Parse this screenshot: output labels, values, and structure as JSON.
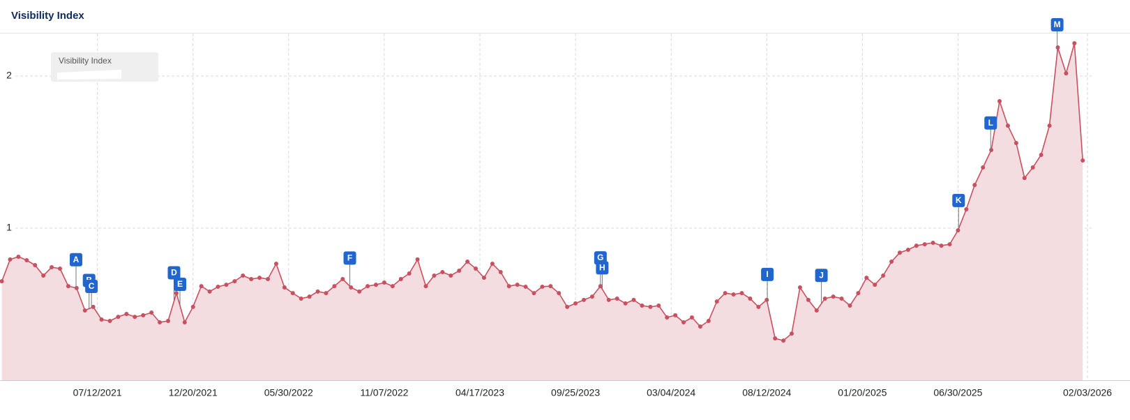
{
  "chart_data": {
    "type": "area",
    "title": "Visibility Index",
    "series": [
      {
        "name": "Visibility Index",
        "color": "#c9505f",
        "fill": "#f3dde0",
        "values": [
          0.651,
          0.794,
          0.812,
          0.789,
          0.757,
          0.688,
          0.743,
          0.734,
          0.619,
          0.606,
          0.459,
          0.482,
          0.399,
          0.39,
          0.417,
          0.436,
          0.417,
          0.427,
          0.445,
          0.381,
          0.39,
          0.573,
          0.381,
          0.482,
          0.619,
          0.583,
          0.615,
          0.628,
          0.651,
          0.688,
          0.665,
          0.674,
          0.665,
          0.766,
          0.61,
          0.573,
          0.537,
          0.55,
          0.583,
          0.573,
          0.619,
          0.665,
          0.61,
          0.583,
          0.619,
          0.628,
          0.642,
          0.619,
          0.665,
          0.702,
          0.794,
          0.619,
          0.688,
          0.711,
          0.688,
          0.72,
          0.78,
          0.734,
          0.674,
          0.766,
          0.711,
          0.619,
          0.628,
          0.615,
          0.573,
          0.615,
          0.619,
          0.573,
          0.482,
          0.505,
          0.528,
          0.55,
          0.619,
          0.528,
          0.537,
          0.505,
          0.528,
          0.491,
          0.482,
          0.491,
          0.413,
          0.427,
          0.381,
          0.413,
          0.353,
          0.39,
          0.518,
          0.573,
          0.564,
          0.573,
          0.537,
          0.482,
          0.528,
          0.275,
          0.261,
          0.307,
          0.61,
          0.528,
          0.459,
          0.537,
          0.55,
          0.537,
          0.491,
          0.573,
          0.674,
          0.628,
          0.688,
          0.78,
          0.839,
          0.858,
          0.885,
          0.894,
          0.904,
          0.885,
          0.894,
          0.986,
          1.124,
          1.284,
          1.399,
          1.514,
          1.835,
          1.674,
          1.56,
          1.33,
          1.399,
          1.482,
          1.674,
          2.188,
          2.018,
          2.216,
          1.445
        ]
      }
    ],
    "x": [
      "02/01/2021",
      "02/15/2021",
      "03/01/2021",
      "03/15/2021",
      "03/29/2021",
      "04/12/2021",
      "04/26/2021",
      "05/10/2021",
      "05/24/2021",
      "06/07/2021",
      "06/21/2021",
      "07/05/2021",
      "07/19/2021",
      "08/02/2021",
      "08/16/2021",
      "08/30/2021",
      "09/13/2021",
      "09/27/2021",
      "10/11/2021",
      "10/25/2021",
      "11/08/2021",
      "11/22/2021",
      "12/06/2021",
      "12/20/2021",
      "01/03/2022",
      "01/17/2022",
      "01/31/2022",
      "02/14/2022",
      "02/28/2022",
      "03/14/2022",
      "03/28/2022",
      "04/11/2022",
      "04/25/2022",
      "05/09/2022",
      "05/23/2022",
      "06/06/2022",
      "06/20/2022",
      "07/04/2022",
      "07/18/2022",
      "08/01/2022",
      "08/15/2022",
      "08/29/2022",
      "09/12/2022",
      "09/26/2022",
      "10/10/2022",
      "10/24/2022",
      "11/07/2022",
      "11/21/2022",
      "12/05/2022",
      "12/19/2022",
      "01/02/2023",
      "01/16/2023",
      "01/30/2023",
      "02/13/2023",
      "02/27/2023",
      "03/13/2023",
      "03/27/2023",
      "04/10/2023",
      "04/24/2023",
      "05/08/2023",
      "05/22/2023",
      "06/05/2023",
      "06/19/2023",
      "07/03/2023",
      "07/17/2023",
      "07/31/2023",
      "08/14/2023",
      "08/28/2023",
      "09/11/2023",
      "09/25/2023",
      "10/09/2023",
      "10/23/2023",
      "11/06/2023",
      "11/20/2023",
      "12/04/2023",
      "12/18/2023",
      "01/01/2024",
      "01/15/2024",
      "01/29/2024",
      "02/12/2024",
      "02/26/2024",
      "03/11/2024",
      "03/25/2024",
      "04/08/2024",
      "04/22/2024",
      "05/06/2024",
      "05/20/2024",
      "06/03/2024",
      "06/17/2024",
      "07/01/2024",
      "07/15/2024",
      "07/29/2024",
      "08/12/2024",
      "08/26/2024",
      "09/09/2024",
      "09/23/2024",
      "10/07/2024",
      "10/21/2024",
      "11/04/2024",
      "11/18/2024",
      "12/02/2024",
      "12/16/2024",
      "12/30/2024",
      "01/13/2025",
      "01/27/2025",
      "02/10/2025",
      "02/24/2025",
      "03/10/2025",
      "03/24/2025",
      "04/07/2025",
      "04/21/2025",
      "05/05/2025",
      "05/19/2025",
      "06/02/2025",
      "06/16/2025",
      "06/30/2025",
      "07/14/2025",
      "07/28/2025",
      "08/11/2025",
      "08/25/2025",
      "09/08/2025",
      "09/22/2025",
      "10/06/2025",
      "10/20/2025",
      "11/03/2025",
      "11/17/2025",
      "12/01/2025",
      "12/15/2025",
      "12/29/2025",
      "01/12/2026",
      "01/26/2026"
    ],
    "xlim": [
      "01/29/2021",
      "02/10/2026"
    ],
    "xticks": [
      "07/12/2021",
      "12/20/2021",
      "05/30/2022",
      "11/07/2022",
      "04/17/2023",
      "09/25/2023",
      "03/04/2024",
      "08/12/2024",
      "01/20/2025",
      "06/30/2025",
      "02/03/2026"
    ],
    "ylim": [
      0,
      2.28
    ],
    "yticks": [
      1,
      2
    ],
    "grid": true,
    "annotations": [
      {
        "label": "A",
        "x": "06/06/2021"
      },
      {
        "label": "B",
        "x": "06/28/2021"
      },
      {
        "label": "C",
        "x": "07/02/2021"
      },
      {
        "label": "D",
        "x": "11/18/2021"
      },
      {
        "label": "E",
        "x": "11/28/2021"
      },
      {
        "label": "F",
        "x": "09/10/2022"
      },
      {
        "label": "G",
        "x": "11/06/2023"
      },
      {
        "label": "H",
        "x": "11/09/2023"
      },
      {
        "label": "I",
        "x": "08/13/2024"
      },
      {
        "label": "J",
        "x": "11/12/2024"
      },
      {
        "label": "K",
        "x": "07/01/2025"
      },
      {
        "label": "L",
        "x": "08/24/2025"
      },
      {
        "label": "M",
        "x": "12/14/2025"
      }
    ],
    "annotation_color": "#2166cf"
  }
}
